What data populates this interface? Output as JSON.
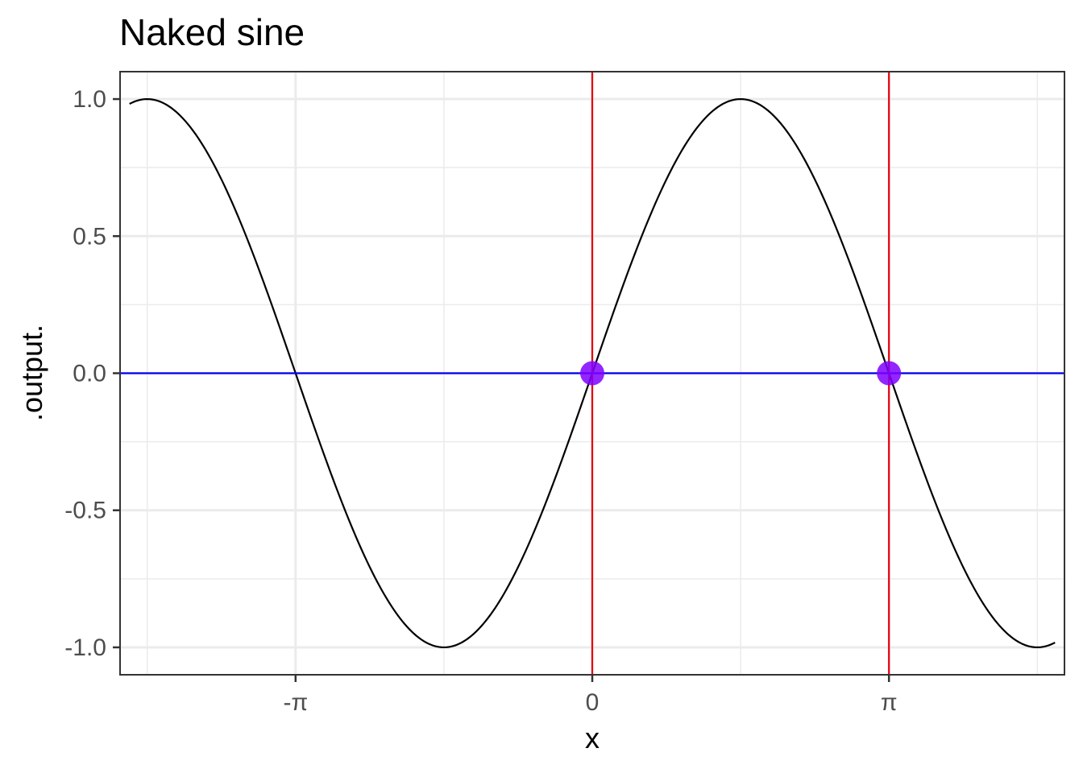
{
  "chart_data": {
    "type": "line",
    "title": "Naked sine",
    "xlabel": "x",
    "ylabel": ".output.",
    "xlim": [
      -5.0,
      5.0
    ],
    "ylim": [
      -1.1,
      1.1
    ],
    "x_ticks": [
      {
        "value": -3.141593,
        "label": "-π"
      },
      {
        "value": 0,
        "label": "0"
      },
      {
        "value": 3.141593,
        "label": "π"
      }
    ],
    "x_minor": [
      -4.712389,
      -1.570796,
      1.570796,
      4.712389
    ],
    "y_ticks": [
      {
        "value": -1.0,
        "label": "-1.0"
      },
      {
        "value": -0.5,
        "label": "-0.5"
      },
      {
        "value": 0.0,
        "label": "0.0"
      },
      {
        "value": 0.5,
        "label": "0.5"
      },
      {
        "value": 1.0,
        "label": "1.0"
      }
    ],
    "y_minor": [
      -0.75,
      -0.25,
      0.25,
      0.75
    ],
    "grid": true,
    "series": [
      {
        "function": "sin(x)",
        "x_range": [
          -4.9,
          4.9
        ],
        "color": "#000000"
      }
    ],
    "reference_lines": {
      "vertical": [
        {
          "x": 0,
          "color": "#e8000b"
        },
        {
          "x": 3.141593,
          "color": "#e8000b"
        }
      ],
      "horizontal": [
        {
          "y": 0,
          "color": "#0000ee"
        }
      ]
    },
    "points": [
      {
        "x": 0,
        "y": 0,
        "color": "#8000ff"
      },
      {
        "x": 3.141593,
        "y": 0,
        "color": "#8000ff"
      }
    ]
  }
}
